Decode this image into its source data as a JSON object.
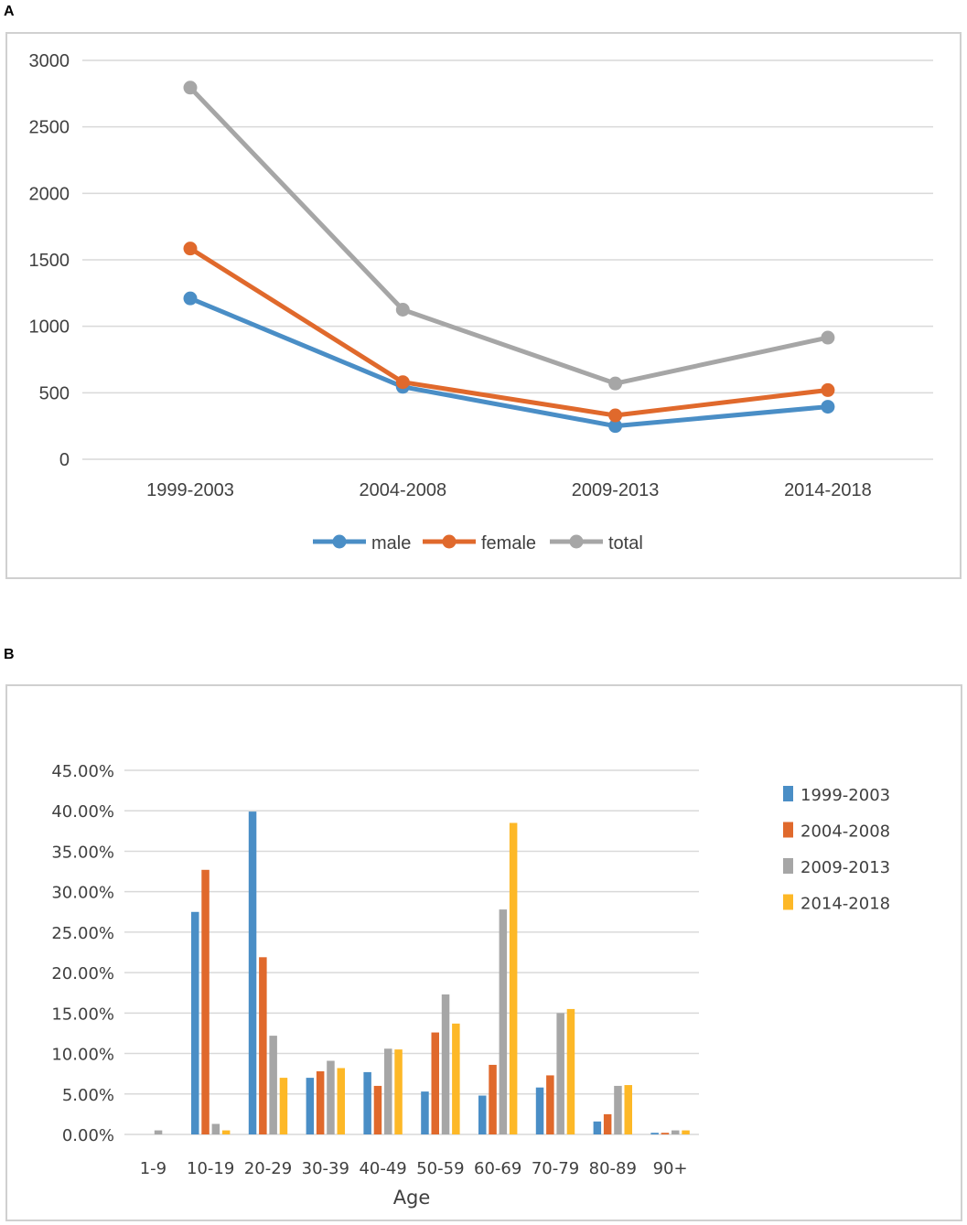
{
  "panels": {
    "a_label": "A",
    "b_label": "B"
  },
  "colors": {
    "blue": "#4a8ec6",
    "orange": "#e0692c",
    "gray": "#a6a6a6",
    "yellow": "#fdb827",
    "grid": "#d9d9d9",
    "text": "#404040"
  },
  "chart_data": [
    {
      "type": "line",
      "title": "",
      "categories": [
        "1999-2003",
        "2004-2008",
        "2009-2013",
        "2014-2018"
      ],
      "ylim": [
        0,
        3000
      ],
      "yticks": [
        "0",
        "500",
        "1000",
        "1500",
        "2000",
        "2500",
        "3000"
      ],
      "legend_position": "bottom",
      "series": [
        {
          "name": "male",
          "color": "#4a8ec6",
          "values": [
            1210,
            545,
            250,
            395
          ]
        },
        {
          "name": "female",
          "color": "#e0692c",
          "values": [
            1585,
            580,
            330,
            520
          ]
        },
        {
          "name": "total",
          "color": "#a6a6a6",
          "values": [
            2795,
            1125,
            570,
            915
          ]
        }
      ]
    },
    {
      "type": "bar",
      "title": "",
      "xlabel": "Age",
      "ylabel": "",
      "categories": [
        "1-9",
        "10-19",
        "20-29",
        "30-39",
        "40-49",
        "50-59",
        "60-69",
        "70-79",
        "80-89",
        "90+"
      ],
      "ylim": [
        0,
        45
      ],
      "yticks": [
        "0.00%",
        "5.00%",
        "10.00%",
        "15.00%",
        "20.00%",
        "25.00%",
        "30.00%",
        "35.00%",
        "40.00%",
        "45.00%"
      ],
      "legend_position": "right",
      "series": [
        {
          "name": "1999-2003",
          "color": "#4a8ec6",
          "values": [
            0.0,
            27.5,
            39.9,
            7.0,
            7.7,
            5.3,
            4.8,
            5.8,
            1.6,
            0.2
          ]
        },
        {
          "name": "2004-2008",
          "color": "#e0692c",
          "values": [
            0.0,
            32.7,
            21.9,
            7.8,
            6.0,
            12.6,
            8.6,
            7.3,
            2.5,
            0.2
          ]
        },
        {
          "name": "2009-2013",
          "color": "#a6a6a6",
          "values": [
            0.5,
            1.3,
            12.2,
            9.1,
            10.6,
            17.3,
            27.8,
            15.0,
            6.0,
            0.5
          ]
        },
        {
          "name": "2014-2018",
          "color": "#fdb827",
          "values": [
            0.0,
            0.5,
            7.0,
            8.2,
            10.5,
            13.7,
            38.5,
            15.5,
            6.1,
            0.5
          ]
        }
      ]
    }
  ]
}
